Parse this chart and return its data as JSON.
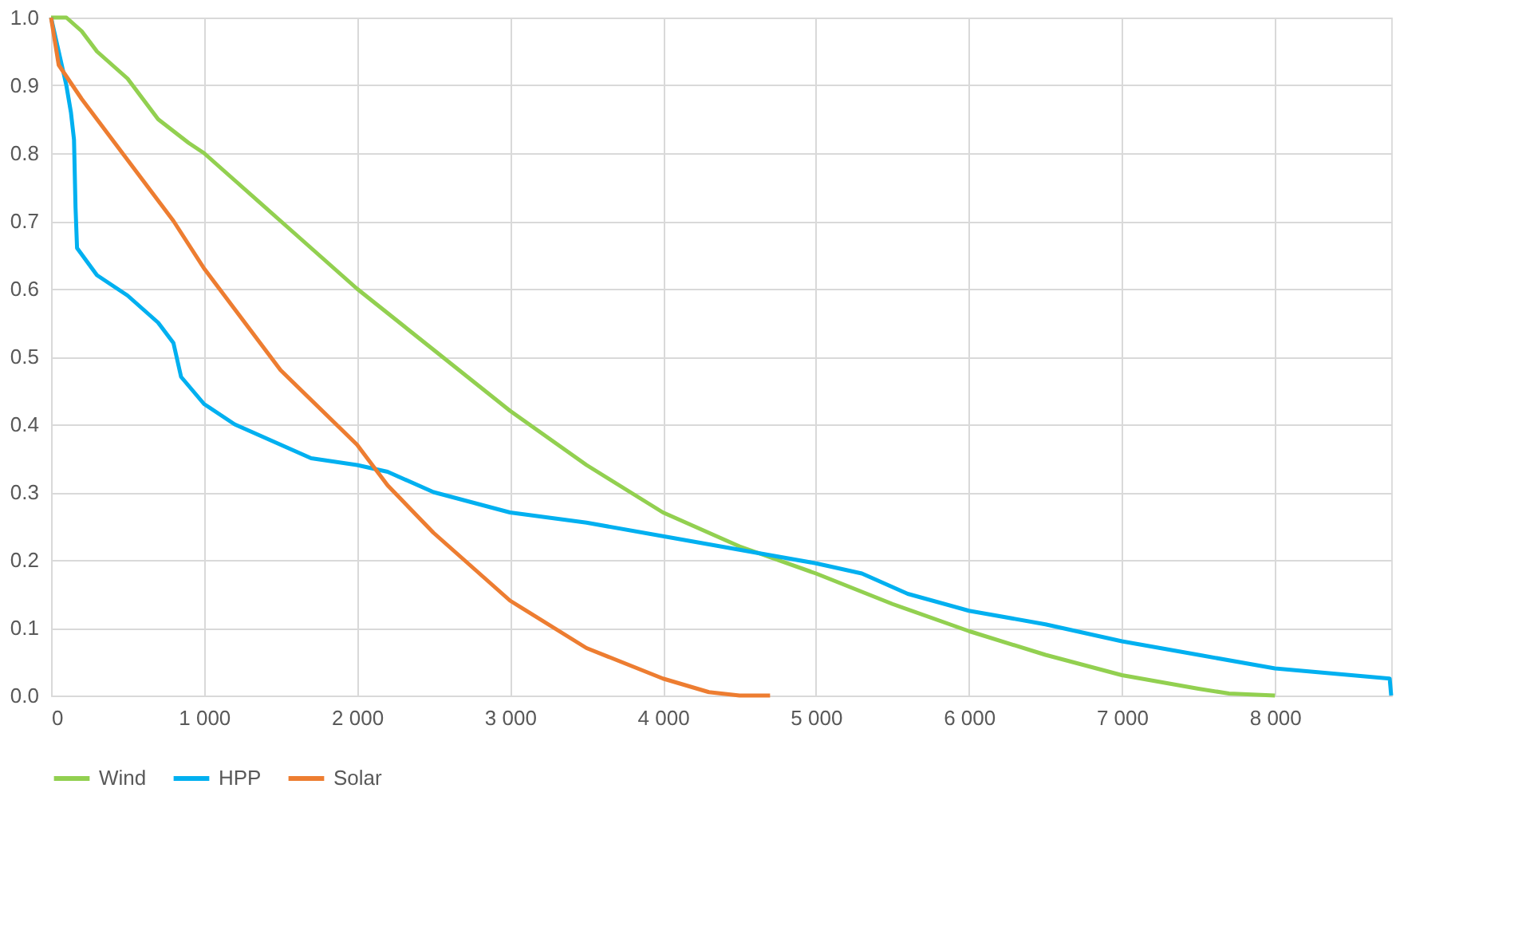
{
  "chart_data": {
    "type": "line",
    "xlim": [
      0,
      8760
    ],
    "ylim": [
      0,
      1.0
    ],
    "xticks": [
      0,
      {
        "value": 1000,
        "label": "1 000"
      },
      {
        "value": 2000,
        "label": "2 000"
      },
      {
        "value": 3000,
        "label": "3 000"
      },
      {
        "value": 4000,
        "label": "4 000"
      },
      {
        "value": 5000,
        "label": "5 000"
      },
      {
        "value": 6000,
        "label": "6 000"
      },
      {
        "value": 7000,
        "label": "7 000"
      },
      {
        "value": 8000,
        "label": "8 000"
      }
    ],
    "yticks": [
      {
        "value": 0,
        "label": "0.0"
      },
      0.1,
      0.2,
      0.3,
      0.4,
      0.5,
      0.6,
      0.7,
      0.8,
      0.9,
      {
        "value": 1,
        "label": "1.0"
      }
    ],
    "grid": true,
    "legend": "bottom",
    "marker": "none",
    "line_style": "solid",
    "series": [
      {
        "name": "Wind",
        "color": "#92d050",
        "x": [
          0,
          100,
          200,
          300,
          500,
          700,
          900,
          1000,
          1200,
          1500,
          2000,
          2500,
          3000,
          3500,
          4000,
          4500,
          5000,
          5500,
          6000,
          6500,
          7000,
          7500,
          7700,
          8000
        ],
        "values": [
          1.0,
          1.0,
          0.98,
          0.95,
          0.91,
          0.85,
          0.815,
          0.8,
          0.76,
          0.7,
          0.6,
          0.51,
          0.42,
          0.34,
          0.27,
          0.22,
          0.18,
          0.135,
          0.095,
          0.06,
          0.03,
          0.01,
          0.003,
          0.0
        ]
      },
      {
        "name": "HPP",
        "color": "#00b0f0",
        "x": [
          0,
          50,
          100,
          130,
          150,
          160,
          170,
          300,
          500,
          700,
          800,
          850,
          1000,
          1200,
          1500,
          1700,
          2000,
          2200,
          2500,
          3000,
          3500,
          4000,
          4500,
          5000,
          5300,
          5600,
          6000,
          6500,
          7000,
          7500,
          8000,
          8500,
          8750,
          8760
        ],
        "values": [
          1.0,
          0.95,
          0.9,
          0.86,
          0.82,
          0.72,
          0.66,
          0.62,
          0.59,
          0.55,
          0.52,
          0.47,
          0.43,
          0.4,
          0.37,
          0.35,
          0.34,
          0.33,
          0.3,
          0.27,
          0.255,
          0.235,
          0.215,
          0.195,
          0.18,
          0.15,
          0.125,
          0.105,
          0.08,
          0.06,
          0.04,
          0.03,
          0.025,
          0.0
        ]
      },
      {
        "name": "Solar",
        "color": "#ed7d31",
        "x": [
          0,
          50,
          200,
          400,
          600,
          800,
          1000,
          1200,
          1500,
          2000,
          2200,
          2500,
          3000,
          3500,
          4000,
          4300,
          4500,
          4700
        ],
        "values": [
          1.0,
          0.93,
          0.88,
          0.82,
          0.76,
          0.7,
          0.63,
          0.57,
          0.48,
          0.37,
          0.31,
          0.24,
          0.14,
          0.07,
          0.025,
          0.005,
          0.0,
          0.0
        ]
      }
    ]
  }
}
